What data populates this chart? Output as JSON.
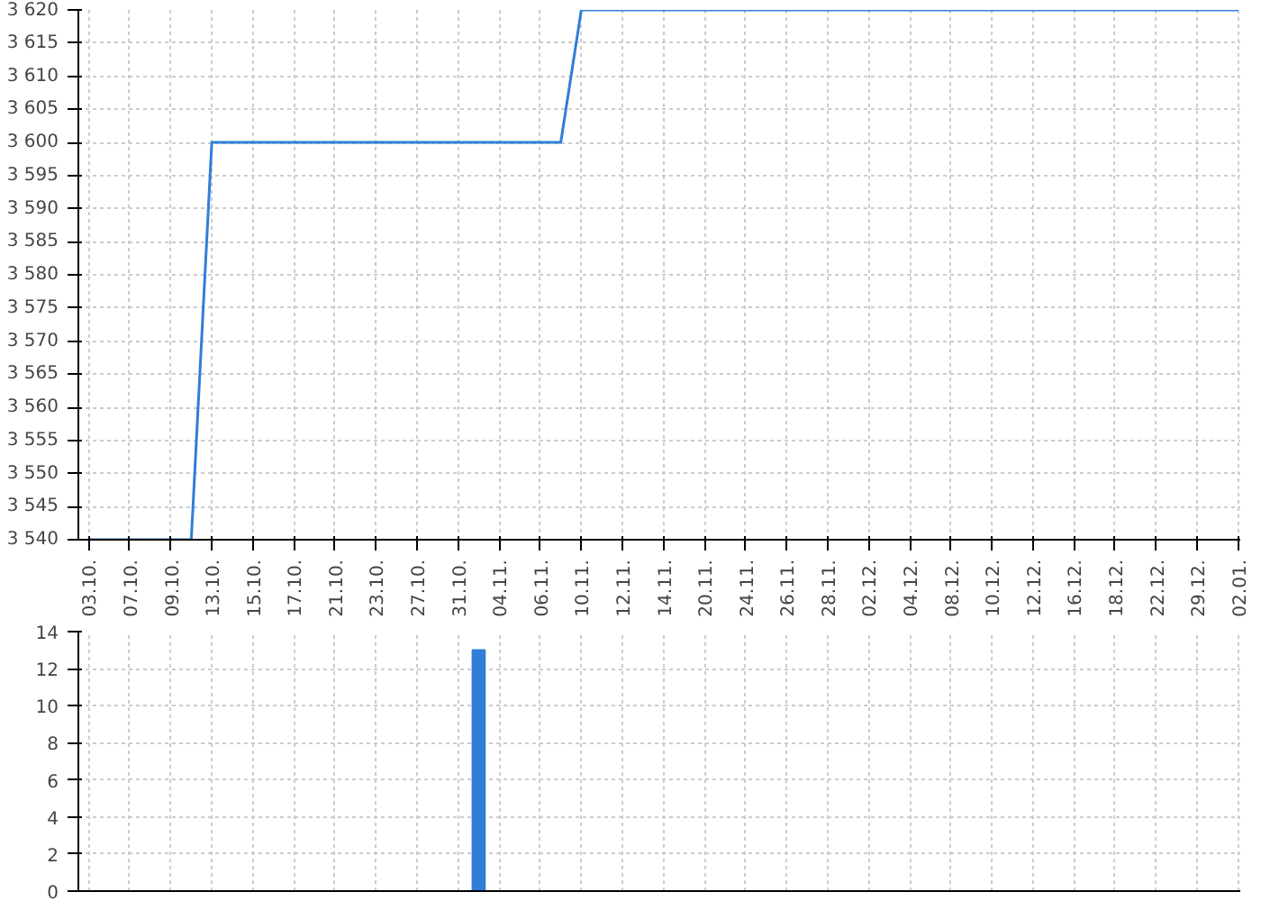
{
  "chart_data": [
    {
      "type": "line",
      "categories": [
        "03.10.",
        null,
        "07.10.",
        null,
        "09.10.",
        null,
        "13.10.",
        null,
        "15.10.",
        null,
        "17.10.",
        null,
        "21.10.",
        null,
        "23.10.",
        null,
        "27.10.",
        null,
        "31.10.",
        null,
        "04.11.",
        null,
        "06.11.",
        null,
        "10.11.",
        null,
        "12.11.",
        null,
        "14.11.",
        null,
        "20.11.",
        null,
        "24.11.",
        null,
        "26.11.",
        null,
        "28.11.",
        null,
        "02.12.",
        null,
        "04.12.",
        null,
        "08.12.",
        null,
        "10.12.",
        null,
        "12.12.",
        null,
        "16.12.",
        null,
        "18.12.",
        null,
        "22.12.",
        null,
        "29.12.",
        null,
        "02.01."
      ],
      "series": [
        {
          "color": "#2f7ed8",
          "values": [
            3540,
            3540,
            3540,
            3540,
            3540,
            3540,
            3600,
            3600,
            3600,
            3600,
            3600,
            3600,
            3600,
            3600,
            3600,
            3600,
            3600,
            3600,
            3600,
            3600,
            3600,
            3600,
            3600,
            3600,
            3620,
            3620,
            3620,
            3620,
            3620,
            3620,
            3620,
            3620,
            3620,
            3620,
            3620,
            3620,
            3620,
            3620,
            3620,
            3620,
            3620,
            3620,
            3620,
            3620,
            3620,
            3620,
            3620,
            3620,
            3620,
            3620,
            3620,
            3620,
            3620,
            3620,
            3620,
            3620,
            3620
          ]
        }
      ],
      "ylim": [
        3540,
        3620
      ],
      "yticks": [
        {
          "value": 3540,
          "label": "3 540"
        },
        {
          "value": 3545,
          "label": "3 545"
        },
        {
          "value": 3550,
          "label": "3 550"
        },
        {
          "value": 3555,
          "label": "3 555"
        },
        {
          "value": 3560,
          "label": "3 560"
        },
        {
          "value": 3565,
          "label": "3 565"
        },
        {
          "value": 3570,
          "label": "3 570"
        },
        {
          "value": 3575,
          "label": "3 575"
        },
        {
          "value": 3580,
          "label": "3 580"
        },
        {
          "value": 3585,
          "label": "3 585"
        },
        {
          "value": 3590,
          "label": "3 590"
        },
        {
          "value": 3595,
          "label": "3 595"
        },
        {
          "value": 3600,
          "label": "3 600"
        },
        {
          "value": 3605,
          "label": "3 605"
        },
        {
          "value": 3610,
          "label": "3 610"
        },
        {
          "value": 3615,
          "label": "3 615"
        },
        {
          "value": 3620,
          "label": "3 620"
        }
      ],
      "grid": true,
      "marker": "none",
      "line_style": "solid"
    },
    {
      "type": "bar",
      "categories": [
        "03.10.",
        null,
        "07.10.",
        null,
        "09.10.",
        null,
        "13.10.",
        null,
        "15.10.",
        null,
        "17.10.",
        null,
        "21.10.",
        null,
        "23.10.",
        null,
        "27.10.",
        null,
        "31.10.",
        null,
        "04.11.",
        null,
        "06.11.",
        null,
        "10.11.",
        null,
        "12.11.",
        null,
        "14.11.",
        null,
        "20.11.",
        null,
        "24.11.",
        null,
        "26.11.",
        null,
        "28.11.",
        null,
        "02.12.",
        null,
        "04.12.",
        null,
        "08.12.",
        null,
        "10.12.",
        null,
        "12.12.",
        null,
        "16.12.",
        null,
        "18.12.",
        null,
        "22.12.",
        null,
        "29.12.",
        null,
        "02.01."
      ],
      "series": [
        {
          "color": "#2f7ed8",
          "values": [
            null,
            null,
            null,
            null,
            null,
            null,
            null,
            null,
            null,
            null,
            null,
            null,
            null,
            null,
            null,
            null,
            null,
            null,
            null,
            13,
            null,
            null,
            null,
            null,
            null,
            null,
            null,
            null,
            null,
            null,
            null,
            null,
            null,
            null,
            null,
            null,
            null,
            null,
            null,
            null,
            null,
            null,
            null,
            null,
            null,
            null,
            null,
            null,
            null,
            null,
            null,
            null,
            null,
            null,
            null,
            null,
            null
          ]
        }
      ],
      "ylim": [
        0,
        14
      ],
      "yticks": [
        0,
        2,
        4,
        6,
        8,
        10,
        12,
        14
      ],
      "grid": true,
      "tick_labels": "y"
    }
  ]
}
